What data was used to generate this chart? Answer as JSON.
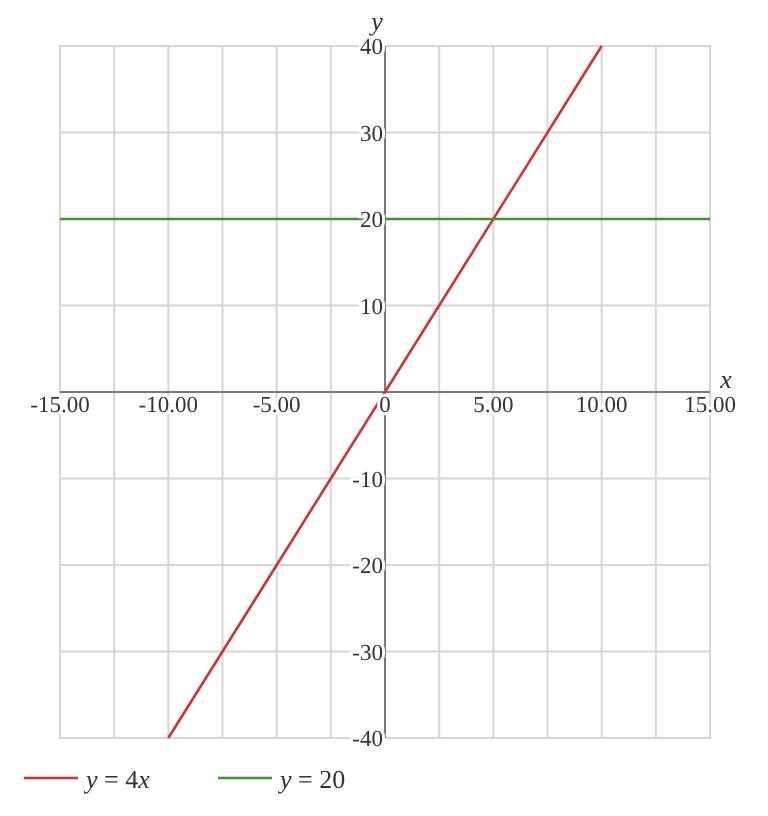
{
  "chart_data": {
    "type": "line",
    "xlabel": "x",
    "ylabel": "y",
    "xlim": [
      -15,
      15
    ],
    "ylim": [
      -40,
      40
    ],
    "xticks": [
      {
        "value": -15,
        "label": "-15.00"
      },
      {
        "value": -12.5,
        "label": null
      },
      {
        "value": -10,
        "label": "-10.00"
      },
      {
        "value": -7.5,
        "label": null
      },
      {
        "value": -5,
        "label": "-5.00"
      },
      {
        "value": -2.5,
        "label": null
      },
      {
        "value": 0,
        "label": "0"
      },
      {
        "value": 2.5,
        "label": null
      },
      {
        "value": 5,
        "label": "5.00"
      },
      {
        "value": 7.5,
        "label": null
      },
      {
        "value": 10,
        "label": "10.00"
      },
      {
        "value": 12.5,
        "label": null
      },
      {
        "value": 15,
        "label": "15.00"
      }
    ],
    "yticks": [
      -40,
      -30,
      -20,
      -10,
      10,
      20,
      30,
      40
    ],
    "grid": true,
    "legend": "bottom",
    "line_style": "solid",
    "series": [
      {
        "name": "y = 4x",
        "color": "#cc3333",
        "x": [
          -10,
          10
        ],
        "values": [
          -40,
          40
        ]
      },
      {
        "name": "y = 20",
        "color": "#4a8a3c",
        "x": [
          -15,
          15
        ],
        "values": [
          20,
          20
        ]
      }
    ]
  }
}
